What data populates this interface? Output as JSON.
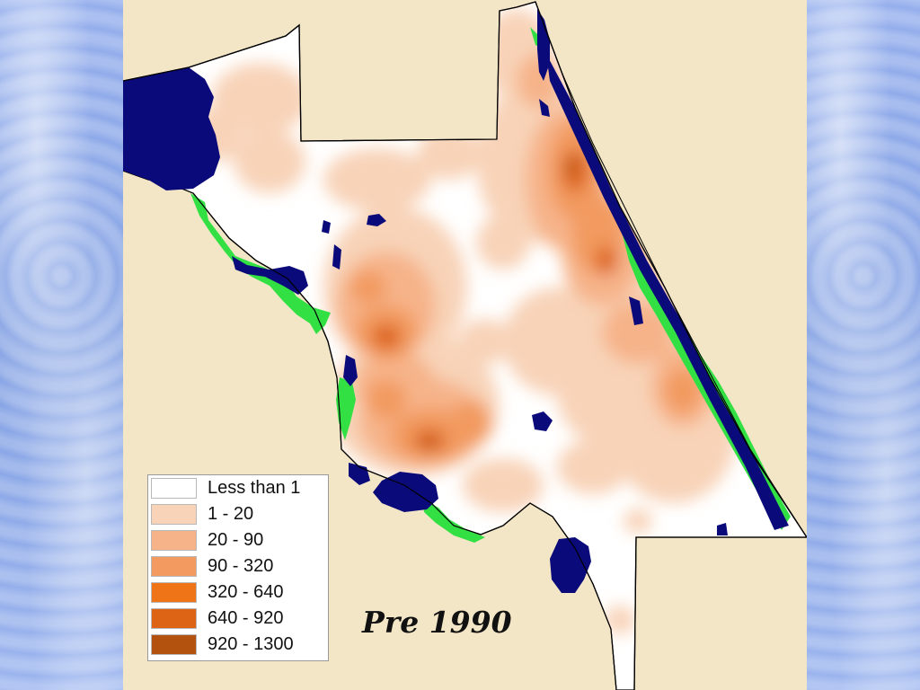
{
  "era_label": "Pre 1990",
  "legend": {
    "items": [
      {
        "label": "Less than 1",
        "color": "#ffffff"
      },
      {
        "label": "1 - 20",
        "color": "#f8d3b8"
      },
      {
        "label": "20 - 90",
        "color": "#f6b389"
      },
      {
        "label": "90 - 320",
        "color": "#f29a5f"
      },
      {
        "label": "320 - 640",
        "color": "#ef7418"
      },
      {
        "label": "640 - 920",
        "color": "#dc6414"
      },
      {
        "label": "920 - 1300",
        "color": "#b3510e"
      }
    ]
  },
  "colors": {
    "water": "#0b0a7a",
    "wetland": "#33e044",
    "county_fill": "#ffffff",
    "outside": "#f3e6c6",
    "boundary": "#000000"
  }
}
